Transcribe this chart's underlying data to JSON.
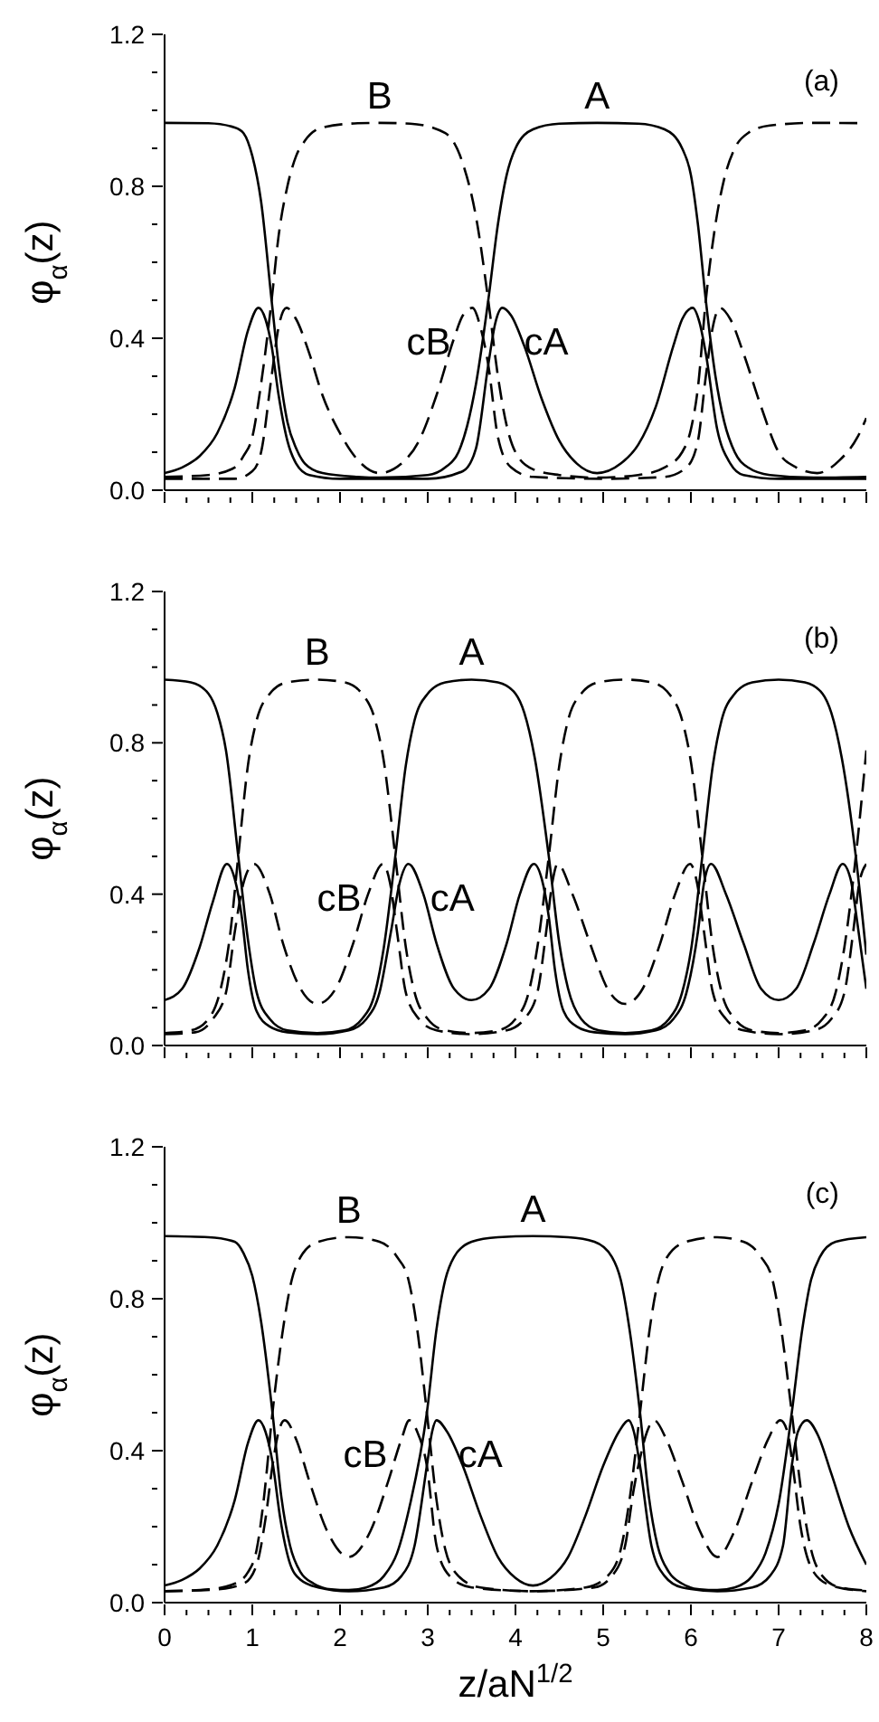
{
  "chart_data": [
    {
      "type": "line",
      "ylabel": "φ$_{α}$(z)",
      "annotations": [
        "(a)"
      ],
      "xlim": [
        0,
        8
      ],
      "ylim": [
        0,
        1.2
      ],
      "tick_labels": "y",
      "marker": "none",
      "xticks": [
        0,
        {
          "value": 0.25,
          "label": null
        },
        {
          "value": 0.5,
          "label": null
        },
        {
          "value": 0.75,
          "label": null
        },
        1,
        {
          "value": 1.25,
          "label": null
        },
        {
          "value": 1.5,
          "label": null
        },
        {
          "value": 1.75,
          "label": null
        },
        2,
        {
          "value": 2.25,
          "label": null
        },
        {
          "value": 2.5,
          "label": null
        },
        {
          "value": 2.75,
          "label": null
        },
        3,
        {
          "value": 3.25,
          "label": null
        },
        {
          "value": 3.5,
          "label": null
        },
        {
          "value": 3.75,
          "label": null
        },
        4,
        {
          "value": 4.25,
          "label": null
        },
        {
          "value": 4.5,
          "label": null
        },
        {
          "value": 4.75,
          "label": null
        },
        5,
        {
          "value": 5.25,
          "label": null
        },
        {
          "value": 5.5,
          "label": null
        },
        {
          "value": 5.75,
          "label": null
        },
        6,
        {
          "value": 6.25,
          "label": null
        },
        {
          "value": 6.5,
          "label": null
        },
        {
          "value": 6.75,
          "label": null
        },
        7,
        {
          "value": 7.25,
          "label": null
        },
        {
          "value": 7.5,
          "label": null
        },
        {
          "value": 7.75,
          "label": null
        },
        8
      ],
      "yticks": [
        {
          "value": 0,
          "label": "0.0"
        },
        {
          "value": 0.1,
          "label": null
        },
        {
          "value": 0.2,
          "label": null
        },
        {
          "value": 0.3,
          "label": null
        },
        0.4,
        {
          "value": 0.5,
          "label": null
        },
        {
          "value": 0.6,
          "label": null
        },
        {
          "value": 0.7,
          "label": null
        },
        0.8,
        {
          "value": 0.9,
          "label": null
        },
        {
          "value": 1.0,
          "label": null
        },
        {
          "value": 1.1,
          "label": null
        },
        1.2
      ],
      "series": [
        {
          "name": "A",
          "color": "#000000",
          "line_style": "solid",
          "x": [
            0,
            0.5,
            0.8,
            0.9,
            1.0,
            1.1,
            1.22,
            1.3,
            1.4,
            1.5,
            1.6,
            1.8,
            2.2,
            2.45,
            3.0,
            3.2,
            3.35,
            3.45,
            3.55,
            3.69,
            3.8,
            3.9,
            4.0,
            4.2,
            4.5,
            4.93,
            5.4,
            5.7,
            5.9,
            6.0,
            6.08,
            6.17,
            6.28,
            6.38,
            6.5,
            6.65,
            6.9,
            7.4,
            8
          ],
          "values": [
            0.967,
            0.966,
            0.955,
            0.94,
            0.88,
            0.76,
            0.5,
            0.33,
            0.18,
            0.11,
            0.07,
            0.045,
            0.035,
            0.033,
            0.04,
            0.06,
            0.1,
            0.17,
            0.28,
            0.5,
            0.7,
            0.83,
            0.9,
            0.95,
            0.965,
            0.967,
            0.965,
            0.95,
            0.9,
            0.83,
            0.7,
            0.5,
            0.3,
            0.18,
            0.1,
            0.06,
            0.04,
            0.033,
            0.035
          ]
        },
        {
          "name": "B",
          "color": "#000000",
          "line_style": "dashed",
          "x": [
            0,
            0.5,
            0.8,
            0.9,
            1.0,
            1.1,
            1.22,
            1.3,
            1.4,
            1.5,
            1.6,
            1.8,
            2.2,
            2.45,
            2.8,
            3.2,
            3.4,
            3.55,
            3.69,
            3.8,
            3.9,
            4.0,
            4.2,
            4.5,
            4.93,
            5.4,
            5.7,
            5.9,
            6.0,
            6.08,
            6.17,
            6.28,
            6.38,
            6.5,
            6.65,
            6.9,
            7.4,
            8
          ],
          "values": [
            0.035,
            0.04,
            0.06,
            0.09,
            0.14,
            0.28,
            0.5,
            0.67,
            0.8,
            0.88,
            0.92,
            0.955,
            0.966,
            0.967,
            0.965,
            0.94,
            0.86,
            0.72,
            0.5,
            0.3,
            0.17,
            0.1,
            0.055,
            0.04,
            0.033,
            0.04,
            0.06,
            0.1,
            0.16,
            0.27,
            0.5,
            0.7,
            0.82,
            0.9,
            0.94,
            0.96,
            0.967,
            0.966
          ]
        },
        {
          "name": "cA",
          "color": "#000000",
          "line_style": "solid",
          "x": [
            0,
            0.2,
            0.4,
            0.6,
            0.8,
            0.95,
            1.07,
            1.15,
            1.22,
            1.3,
            1.4,
            1.5,
            1.65,
            2.0,
            3.0,
            3.4,
            3.55,
            3.69,
            3.77,
            3.85,
            3.95,
            4.1,
            4.3,
            4.5,
            4.7,
            4.93,
            5.2,
            5.4,
            5.6,
            5.8,
            5.9,
            6.02,
            6.1,
            6.17,
            6.3,
            6.45,
            6.6,
            7.0,
            8
          ],
          "values": [
            0.045,
            0.06,
            0.09,
            0.15,
            0.27,
            0.42,
            0.48,
            0.45,
            0.38,
            0.25,
            0.13,
            0.07,
            0.04,
            0.03,
            0.03,
            0.05,
            0.11,
            0.33,
            0.44,
            0.48,
            0.46,
            0.38,
            0.24,
            0.13,
            0.07,
            0.045,
            0.07,
            0.12,
            0.22,
            0.38,
            0.45,
            0.48,
            0.44,
            0.36,
            0.16,
            0.07,
            0.04,
            0.03,
            0.03
          ]
        },
        {
          "name": "cB",
          "color": "#000000",
          "line_style": "dashed",
          "x": [
            0,
            0.8,
            1.0,
            1.1,
            1.22,
            1.3,
            1.39,
            1.5,
            1.65,
            1.8,
            2.0,
            2.2,
            2.45,
            2.7,
            2.9,
            3.1,
            3.3,
            3.4,
            3.51,
            3.6,
            3.69,
            3.8,
            3.95,
            4.2,
            5.0,
            5.7,
            5.95,
            6.08,
            6.17,
            6.25,
            6.33,
            6.45,
            6.6,
            6.8,
            7.0,
            7.2,
            7.44,
            7.7,
            7.9,
            8
          ],
          "values": [
            0.03,
            0.03,
            0.05,
            0.1,
            0.3,
            0.43,
            0.48,
            0.45,
            0.36,
            0.25,
            0.15,
            0.08,
            0.045,
            0.07,
            0.13,
            0.25,
            0.4,
            0.46,
            0.48,
            0.43,
            0.33,
            0.14,
            0.06,
            0.035,
            0.03,
            0.035,
            0.06,
            0.13,
            0.3,
            0.43,
            0.48,
            0.45,
            0.36,
            0.22,
            0.1,
            0.06,
            0.045,
            0.08,
            0.14,
            0.19
          ]
        }
      ]
    },
    {
      "type": "line",
      "ylabel": "φ$_{α}$(z)",
      "annotations": [
        "(b)"
      ],
      "xlim": [
        0,
        8
      ],
      "ylim": [
        0,
        1.2
      ],
      "tick_labels": "y",
      "marker": "none",
      "xticks": [
        0,
        {
          "value": 0.25,
          "label": null
        },
        {
          "value": 0.5,
          "label": null
        },
        {
          "value": 0.75,
          "label": null
        },
        1,
        {
          "value": 1.25,
          "label": null
        },
        {
          "value": 1.5,
          "label": null
        },
        {
          "value": 1.75,
          "label": null
        },
        2,
        {
          "value": 2.25,
          "label": null
        },
        {
          "value": 2.5,
          "label": null
        },
        {
          "value": 2.75,
          "label": null
        },
        3,
        {
          "value": 3.25,
          "label": null
        },
        {
          "value": 3.5,
          "label": null
        },
        {
          "value": 3.75,
          "label": null
        },
        4,
        {
          "value": 4.25,
          "label": null
        },
        {
          "value": 4.5,
          "label": null
        },
        {
          "value": 4.75,
          "label": null
        },
        5,
        {
          "value": 5.25,
          "label": null
        },
        {
          "value": 5.5,
          "label": null
        },
        {
          "value": 5.75,
          "label": null
        },
        6,
        {
          "value": 6.25,
          "label": null
        },
        {
          "value": 6.5,
          "label": null
        },
        {
          "value": 6.75,
          "label": null
        },
        7,
        {
          "value": 7.25,
          "label": null
        },
        {
          "value": 7.5,
          "label": null
        },
        {
          "value": 7.75,
          "label": null
        },
        8
      ],
      "yticks": [
        {
          "value": 0,
          "label": "0.0"
        },
        {
          "value": 0.1,
          "label": null
        },
        {
          "value": 0.2,
          "label": null
        },
        {
          "value": 0.3,
          "label": null
        },
        0.4,
        {
          "value": 0.5,
          "label": null
        },
        {
          "value": 0.6,
          "label": null
        },
        {
          "value": 0.7,
          "label": null
        },
        0.8,
        {
          "value": 0.9,
          "label": null
        },
        {
          "value": 1.0,
          "label": null
        },
        {
          "value": 1.1,
          "label": null
        },
        1.2
      ],
      "series": [
        {
          "name": "A",
          "color": "#000000",
          "line_style": "solid",
          "x": [
            0,
            0.3,
            0.5,
            0.6,
            0.7,
            0.84,
            0.95,
            1.05,
            1.2,
            1.4,
            1.74,
            2.05,
            2.25,
            2.4,
            2.5,
            2.63,
            2.75,
            2.85,
            3.0,
            3.2,
            3.5,
            3.8,
            4.0,
            4.1,
            4.22,
            4.38,
            4.5,
            4.6,
            4.75,
            4.95,
            5.25,
            5.55,
            5.75,
            5.9,
            6.0,
            6.13,
            6.25,
            6.35,
            6.5,
            6.7,
            7.0,
            7.3,
            7.5,
            7.6,
            7.72,
            7.88,
            8
          ],
          "values": [
            0.967,
            0.96,
            0.93,
            0.88,
            0.78,
            0.5,
            0.28,
            0.14,
            0.07,
            0.04,
            0.033,
            0.04,
            0.07,
            0.14,
            0.26,
            0.5,
            0.74,
            0.86,
            0.93,
            0.96,
            0.967,
            0.96,
            0.93,
            0.88,
            0.76,
            0.5,
            0.27,
            0.15,
            0.07,
            0.04,
            0.033,
            0.04,
            0.07,
            0.14,
            0.25,
            0.5,
            0.74,
            0.86,
            0.93,
            0.96,
            0.967,
            0.96,
            0.93,
            0.88,
            0.76,
            0.5,
            0.24
          ]
        },
        {
          "name": "B",
          "color": "#000000",
          "line_style": "dashed",
          "x": [
            0,
            0.3,
            0.5,
            0.64,
            0.74,
            0.84,
            0.95,
            1.05,
            1.2,
            1.4,
            1.74,
            2.05,
            2.25,
            2.4,
            2.5,
            2.63,
            2.75,
            2.85,
            3.0,
            3.2,
            3.5,
            3.8,
            4.0,
            4.15,
            4.25,
            4.38,
            4.5,
            4.6,
            4.75,
            4.95,
            5.25,
            5.55,
            5.75,
            5.9,
            6.0,
            6.13,
            6.25,
            6.35,
            6.5,
            6.7,
            7.0,
            7.3,
            7.5,
            7.65,
            7.75,
            7.88,
            8
          ],
          "values": [
            0.033,
            0.04,
            0.07,
            0.15,
            0.28,
            0.5,
            0.74,
            0.86,
            0.93,
            0.96,
            0.967,
            0.96,
            0.93,
            0.86,
            0.75,
            0.5,
            0.26,
            0.14,
            0.07,
            0.04,
            0.033,
            0.04,
            0.07,
            0.14,
            0.26,
            0.5,
            0.74,
            0.86,
            0.93,
            0.96,
            0.967,
            0.96,
            0.93,
            0.86,
            0.75,
            0.5,
            0.26,
            0.14,
            0.07,
            0.04,
            0.033,
            0.04,
            0.07,
            0.14,
            0.26,
            0.5,
            0.78
          ]
        },
        {
          "name": "cA",
          "color": "#000000",
          "line_style": "solid",
          "x": [
            0,
            0.2,
            0.4,
            0.55,
            0.71,
            0.8,
            0.88,
            0.95,
            1.05,
            1.2,
            1.4,
            1.74,
            2.1,
            2.3,
            2.45,
            2.58,
            2.68,
            2.78,
            2.95,
            3.1,
            3.3,
            3.5,
            3.7,
            3.9,
            4.05,
            4.21,
            4.3,
            4.38,
            4.45,
            4.55,
            4.7,
            4.9,
            5.25,
            5.6,
            5.8,
            5.95,
            6.08,
            6.15,
            6.23,
            6.4,
            6.6,
            6.8,
            7.0,
            7.2,
            7.4,
            7.58,
            7.73,
            7.82,
            7.9,
            8
          ],
          "values": [
            0.12,
            0.15,
            0.26,
            0.38,
            0.48,
            0.44,
            0.34,
            0.2,
            0.09,
            0.05,
            0.035,
            0.03,
            0.04,
            0.07,
            0.14,
            0.3,
            0.43,
            0.48,
            0.4,
            0.27,
            0.15,
            0.12,
            0.15,
            0.27,
            0.4,
            0.48,
            0.44,
            0.34,
            0.2,
            0.09,
            0.05,
            0.035,
            0.03,
            0.04,
            0.07,
            0.14,
            0.3,
            0.43,
            0.48,
            0.4,
            0.27,
            0.15,
            0.12,
            0.15,
            0.27,
            0.4,
            0.48,
            0.44,
            0.32,
            0.15
          ]
        },
        {
          "name": "cB",
          "color": "#000000",
          "line_style": "dashed",
          "x": [
            0,
            0.35,
            0.55,
            0.7,
            0.8,
            0.9,
            1.02,
            1.2,
            1.35,
            1.55,
            1.74,
            1.95,
            2.15,
            2.32,
            2.49,
            2.57,
            2.65,
            2.75,
            2.9,
            3.1,
            3.5,
            3.9,
            4.1,
            4.25,
            4.35,
            4.42,
            4.48,
            4.65,
            4.85,
            5.05,
            5.25,
            5.45,
            5.65,
            5.82,
            5.99,
            6.07,
            6.15,
            6.25,
            6.4,
            6.6,
            7.0,
            7.4,
            7.6,
            7.75,
            7.85,
            7.92,
            8
          ],
          "values": [
            0.03,
            0.035,
            0.07,
            0.14,
            0.3,
            0.43,
            0.48,
            0.4,
            0.27,
            0.15,
            0.11,
            0.15,
            0.27,
            0.4,
            0.48,
            0.43,
            0.3,
            0.14,
            0.07,
            0.04,
            0.03,
            0.04,
            0.07,
            0.14,
            0.3,
            0.43,
            0.48,
            0.4,
            0.27,
            0.15,
            0.11,
            0.15,
            0.27,
            0.4,
            0.48,
            0.43,
            0.3,
            0.14,
            0.07,
            0.04,
            0.03,
            0.04,
            0.07,
            0.14,
            0.3,
            0.43,
            0.48
          ]
        }
      ]
    },
    {
      "type": "line",
      "ylabel": "φ$_{α}$(z)",
      "xlabel": "z/aN$^{1/2}$",
      "annotations": [
        "(c)"
      ],
      "xlim": [
        0,
        8
      ],
      "ylim": [
        0,
        1.2
      ],
      "marker": "none",
      "xticks": [
        0,
        {
          "value": 0.25,
          "label": null
        },
        {
          "value": 0.5,
          "label": null
        },
        {
          "value": 0.75,
          "label": null
        },
        1,
        {
          "value": 1.25,
          "label": null
        },
        {
          "value": 1.5,
          "label": null
        },
        {
          "value": 1.75,
          "label": null
        },
        2,
        {
          "value": 2.25,
          "label": null
        },
        {
          "value": 2.5,
          "label": null
        },
        {
          "value": 2.75,
          "label": null
        },
        3,
        {
          "value": 3.25,
          "label": null
        },
        {
          "value": 3.5,
          "label": null
        },
        {
          "value": 3.75,
          "label": null
        },
        4,
        {
          "value": 4.25,
          "label": null
        },
        {
          "value": 4.5,
          "label": null
        },
        {
          "value": 4.75,
          "label": null
        },
        5,
        {
          "value": 5.25,
          "label": null
        },
        {
          "value": 5.5,
          "label": null
        },
        {
          "value": 5.75,
          "label": null
        },
        6,
        {
          "value": 6.25,
          "label": null
        },
        {
          "value": 6.5,
          "label": null
        },
        {
          "value": 6.75,
          "label": null
        },
        7,
        {
          "value": 7.25,
          "label": null
        },
        {
          "value": 7.5,
          "label": null
        },
        {
          "value": 7.75,
          "label": null
        },
        8
      ],
      "yticks": [
        {
          "value": 0,
          "label": "0.0"
        },
        {
          "value": 0.1,
          "label": null
        },
        {
          "value": 0.2,
          "label": null
        },
        {
          "value": 0.3,
          "label": null
        },
        0.4,
        {
          "value": 0.5,
          "label": null
        },
        {
          "value": 0.6,
          "label": null
        },
        {
          "value": 0.7,
          "label": null
        },
        0.8,
        {
          "value": 0.9,
          "label": null
        },
        {
          "value": 1.0,
          "label": null
        },
        {
          "value": 1.1,
          "label": null
        },
        1.2
      ],
      "series": [
        {
          "name": "A",
          "color": "#000000",
          "line_style": "solid",
          "x": [
            0,
            0.5,
            0.8,
            0.9,
            1.0,
            1.1,
            1.23,
            1.33,
            1.43,
            1.55,
            1.7,
            1.9,
            2.1,
            2.3,
            2.5,
            2.65,
            2.8,
            2.99,
            3.1,
            3.2,
            3.3,
            3.5,
            3.8,
            4.2,
            4.6,
            4.9,
            5.1,
            5.2,
            5.3,
            5.42,
            5.52,
            5.62,
            5.75,
            5.9,
            6.1,
            6.3,
            6.5,
            6.7,
            6.85,
            7.0,
            7.15,
            7.27,
            7.37,
            7.47,
            7.65,
            8
          ],
          "values": [
            0.965,
            0.962,
            0.95,
            0.92,
            0.86,
            0.74,
            0.5,
            0.28,
            0.15,
            0.08,
            0.05,
            0.035,
            0.033,
            0.04,
            0.07,
            0.13,
            0.26,
            0.5,
            0.72,
            0.85,
            0.91,
            0.95,
            0.962,
            0.965,
            0.962,
            0.95,
            0.91,
            0.85,
            0.72,
            0.5,
            0.28,
            0.15,
            0.08,
            0.05,
            0.035,
            0.033,
            0.04,
            0.07,
            0.13,
            0.26,
            0.5,
            0.72,
            0.85,
            0.91,
            0.95,
            0.962
          ]
        },
        {
          "name": "B",
          "color": "#000000",
          "line_style": "dashed",
          "x": [
            0,
            0.5,
            0.8,
            0.95,
            1.05,
            1.13,
            1.23,
            1.35,
            1.45,
            1.55,
            1.75,
            2.1,
            2.45,
            2.65,
            2.78,
            2.88,
            2.99,
            3.1,
            3.2,
            3.35,
            3.6,
            4.2,
            4.8,
            5.05,
            5.2,
            5.3,
            5.42,
            5.53,
            5.63,
            5.73,
            5.95,
            6.3,
            6.6,
            6.8,
            6.93,
            7.03,
            7.15,
            7.27,
            7.37,
            7.5,
            7.7,
            8
          ],
          "values": [
            0.03,
            0.035,
            0.05,
            0.08,
            0.14,
            0.27,
            0.5,
            0.72,
            0.85,
            0.91,
            0.95,
            0.962,
            0.95,
            0.91,
            0.85,
            0.72,
            0.5,
            0.27,
            0.14,
            0.07,
            0.04,
            0.03,
            0.04,
            0.07,
            0.14,
            0.27,
            0.5,
            0.72,
            0.85,
            0.91,
            0.95,
            0.962,
            0.95,
            0.91,
            0.85,
            0.72,
            0.5,
            0.27,
            0.14,
            0.07,
            0.04,
            0.032
          ]
        },
        {
          "name": "cA",
          "color": "#000000",
          "line_style": "solid",
          "x": [
            0,
            0.2,
            0.4,
            0.6,
            0.8,
            0.95,
            1.07,
            1.15,
            1.23,
            1.32,
            1.42,
            1.55,
            1.75,
            2.1,
            2.5,
            2.7,
            2.85,
            2.99,
            3.05,
            3.1,
            3.22,
            3.4,
            3.6,
            3.8,
            4.0,
            4.2,
            4.4,
            4.6,
            4.8,
            5.0,
            5.18,
            5.29,
            5.35,
            5.42,
            5.55,
            5.7,
            5.9,
            6.3,
            6.7,
            6.9,
            7.05,
            7.15,
            7.22,
            7.32,
            7.45,
            7.6,
            7.8,
            8
          ],
          "values": [
            0.045,
            0.06,
            0.09,
            0.15,
            0.27,
            0.42,
            0.48,
            0.45,
            0.37,
            0.22,
            0.11,
            0.06,
            0.04,
            0.03,
            0.04,
            0.07,
            0.15,
            0.36,
            0.45,
            0.48,
            0.45,
            0.36,
            0.23,
            0.12,
            0.065,
            0.045,
            0.065,
            0.12,
            0.23,
            0.36,
            0.45,
            0.48,
            0.45,
            0.36,
            0.15,
            0.07,
            0.04,
            0.03,
            0.04,
            0.07,
            0.15,
            0.36,
            0.45,
            0.48,
            0.44,
            0.34,
            0.2,
            0.1
          ]
        },
        {
          "name": "cB",
          "color": "#000000",
          "line_style": "dashed",
          "x": [
            0,
            0.6,
            0.9,
            1.05,
            1.15,
            1.23,
            1.3,
            1.37,
            1.5,
            1.65,
            1.85,
            2.1,
            2.35,
            2.55,
            2.7,
            2.79,
            2.88,
            2.99,
            3.1,
            3.25,
            3.5,
            4.2,
            4.9,
            5.1,
            5.25,
            5.35,
            5.42,
            5.5,
            5.58,
            5.72,
            5.9,
            6.1,
            6.3,
            6.5,
            6.7,
            6.88,
            7.02,
            7.1,
            7.15,
            7.25,
            7.4,
            7.6,
            8
          ],
          "values": [
            0.03,
            0.035,
            0.05,
            0.1,
            0.22,
            0.36,
            0.45,
            0.48,
            0.43,
            0.32,
            0.19,
            0.12,
            0.19,
            0.32,
            0.43,
            0.48,
            0.45,
            0.36,
            0.15,
            0.07,
            0.04,
            0.03,
            0.04,
            0.07,
            0.15,
            0.3,
            0.38,
            0.45,
            0.48,
            0.43,
            0.32,
            0.19,
            0.12,
            0.19,
            0.32,
            0.43,
            0.48,
            0.45,
            0.38,
            0.2,
            0.08,
            0.045,
            0.03
          ]
        }
      ]
    }
  ]
}
